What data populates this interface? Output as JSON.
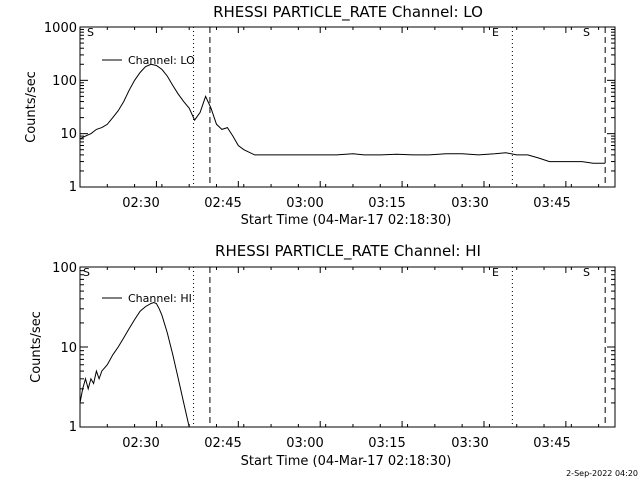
{
  "chart_data": [
    {
      "type": "line",
      "title": "RHESSI PARTICLE_RATE Channel: LO",
      "xlabel": "Start Time (04-Mar-17 02:18:30)",
      "ylabel": "Counts/sec",
      "yscale": "log",
      "ylim": [
        1,
        1000
      ],
      "ytick_values": [
        1,
        10,
        100,
        1000
      ],
      "ytick_labels": [
        "1",
        "10",
        "100",
        "1000"
      ],
      "xlim_minutes": [
        -2,
        96
      ],
      "xtick_values": [
        12,
        27,
        42,
        57,
        72,
        87
      ],
      "xtick_labels": [
        "02:30",
        "02:45",
        "03:00",
        "03:15",
        "03:30",
        "03:45"
      ],
      "legend": "Channel: LO",
      "legend_position": "top-left",
      "markers": [
        {
          "minute": -2,
          "label": "S",
          "style": "dotted"
        },
        {
          "minute": 18.8,
          "label": "",
          "style": "dotted"
        },
        {
          "minute": 21.8,
          "label": "",
          "style": "dashed"
        },
        {
          "minute": 77.2,
          "label": "E",
          "style": "dotted"
        },
        {
          "minute": 94.2,
          "label": "S",
          "style": "dashed"
        }
      ],
      "series": [
        {
          "name": "Channel: LO",
          "x": [
            -2,
            -1,
            0,
            1,
            2,
            3,
            4,
            5,
            6,
            7,
            8,
            9,
            10,
            11,
            12,
            13,
            14,
            15,
            16,
            17,
            18,
            19,
            20,
            21,
            22,
            23,
            24,
            25,
            26,
            27,
            28,
            30,
            32,
            35,
            38,
            42,
            45,
            48,
            50,
            53,
            56,
            59,
            62,
            65,
            68,
            71,
            74,
            76,
            78,
            80,
            82,
            84,
            86,
            88,
            90,
            92,
            93,
            94.2
          ],
          "y": [
            8,
            9,
            10,
            12,
            13,
            15,
            20,
            27,
            40,
            65,
            100,
            140,
            180,
            200,
            190,
            160,
            120,
            80,
            55,
            40,
            30,
            18,
            25,
            50,
            30,
            15,
            12,
            13,
            9,
            6,
            5,
            4,
            4,
            4,
            4,
            4,
            4,
            4.2,
            4,
            4,
            4.1,
            4,
            4,
            4.2,
            4.2,
            4,
            4.2,
            4.4,
            4,
            4,
            3.5,
            3,
            3,
            3,
            3,
            2.8,
            2.8,
            2.8
          ]
        }
      ]
    },
    {
      "type": "line",
      "title": "RHESSI PARTICLE_RATE Channel: HI",
      "xlabel": "Start Time (04-Mar-17 02:18:30)",
      "ylabel": "Counts/sec",
      "yscale": "log",
      "ylim": [
        1,
        100
      ],
      "ytick_values": [
        1,
        10,
        100
      ],
      "ytick_labels": [
        "1",
        "10",
        "100"
      ],
      "xlim_minutes": [
        -2,
        96
      ],
      "xtick_values": [
        12,
        27,
        42,
        57,
        72,
        87
      ],
      "xtick_labels": [
        "02:30",
        "02:45",
        "03:00",
        "03:15",
        "03:30",
        "03:45"
      ],
      "legend": "Channel: HI",
      "legend_position": "top-left",
      "markers": [
        {
          "minute": -2,
          "label": "S",
          "style": "dotted"
        },
        {
          "minute": 18.8,
          "label": "",
          "style": "dotted"
        },
        {
          "minute": 21.8,
          "label": "",
          "style": "dashed"
        },
        {
          "minute": 77.2,
          "label": "E",
          "style": "dotted"
        },
        {
          "minute": 94.2,
          "label": "S",
          "style": "dashed"
        }
      ],
      "series": [
        {
          "name": "Channel: HI",
          "x": [
            -2,
            -1.5,
            -1,
            -0.5,
            0,
            0.5,
            1,
            1.5,
            2,
            3,
            4,
            5,
            6,
            7,
            8,
            9,
            10,
            11,
            11.5,
            12,
            12.5,
            13,
            14,
            15,
            16,
            17,
            18
          ],
          "y": [
            2,
            3,
            4,
            3,
            4,
            3.5,
            5,
            4,
            5,
            6,
            8,
            10,
            13,
            17,
            22,
            28,
            32,
            35,
            36,
            35,
            30,
            25,
            15,
            8,
            4,
            2,
            1
          ]
        }
      ]
    }
  ],
  "footer": {
    "timestamp": "2-Sep-2022 04:20"
  }
}
